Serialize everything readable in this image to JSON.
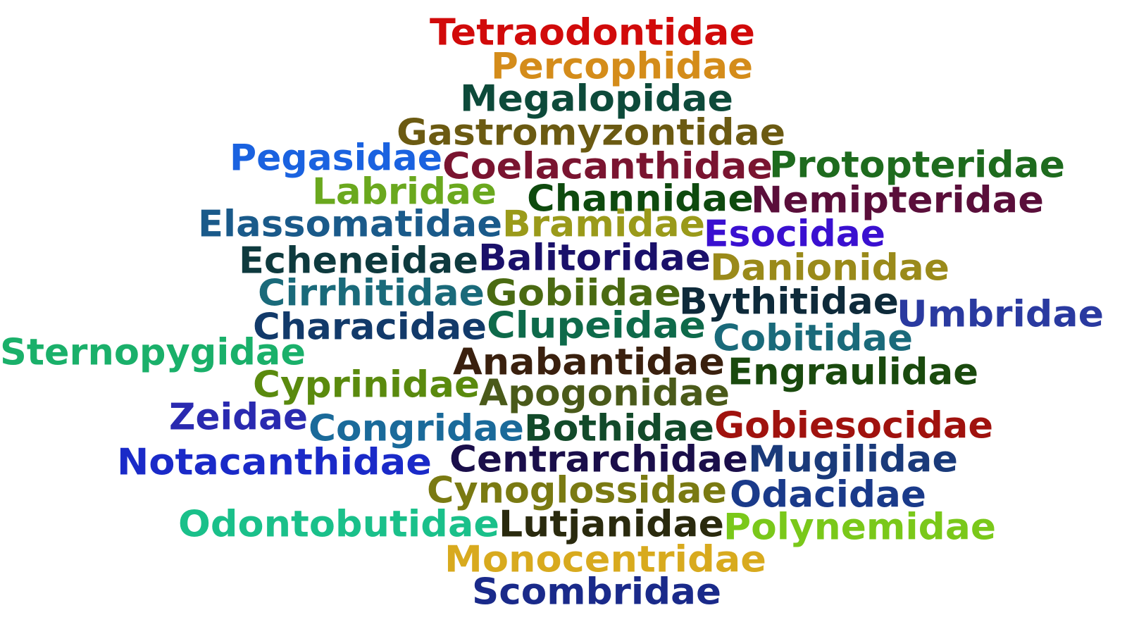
{
  "words": [
    {
      "text": "Tetraodontidae",
      "color": "#d10a0a"
    },
    {
      "text": "Percophidae",
      "color": "#d48c1a"
    },
    {
      "text": "Megalopidae",
      "color": "#0d4a3a"
    },
    {
      "text": "Gastromyzontidae",
      "color": "#6b5a12"
    },
    {
      "text": "Pegasidae",
      "color": "#1a62e0"
    },
    {
      "text": "Coelacanthidae",
      "color": "#7a1430"
    },
    {
      "text": "Protopteridae",
      "color": "#1e6b1e"
    },
    {
      "text": "Labridae",
      "color": "#6aa81e"
    },
    {
      "text": "Channidae",
      "color": "#0e4a0e"
    },
    {
      "text": "Nemipteridae",
      "color": "#5a0e3a"
    },
    {
      "text": "Elassomatidae",
      "color": "#1a5a8a"
    },
    {
      "text": "Bramidae",
      "color": "#9a9a1a"
    },
    {
      "text": "Esocidae",
      "color": "#3a10d0"
    },
    {
      "text": "Echeneidae",
      "color": "#0e3a3e"
    },
    {
      "text": "Balitoridae",
      "color": "#1a106a"
    },
    {
      "text": "Danionidae",
      "color": "#9a8a1a"
    },
    {
      "text": "Cirrhitidae",
      "color": "#1a6a7a"
    },
    {
      "text": "Gobiidae",
      "color": "#4a6a12"
    },
    {
      "text": "Bythitidae",
      "color": "#0e2a3a"
    },
    {
      "text": "Umbridae",
      "color": "#2a3aa0"
    },
    {
      "text": "Characidae",
      "color": "#123a6a"
    },
    {
      "text": "Clupeidae",
      "color": "#0e6a4a"
    },
    {
      "text": "Cobitidae",
      "color": "#1a6a7a"
    },
    {
      "text": "Sternopygidae",
      "color": "#1ab06a"
    },
    {
      "text": "Anabantidae",
      "color": "#3a200e"
    },
    {
      "text": "Engraulidae",
      "color": "#1a4a0e"
    },
    {
      "text": "Cyprinidae",
      "color": "#5a8a0e"
    },
    {
      "text": "Apogonidae",
      "color": "#4a5a1a"
    },
    {
      "text": "Zeidae",
      "color": "#2a2ab0"
    },
    {
      "text": "Congridae",
      "color": "#1a6a9a"
    },
    {
      "text": "Bothidae",
      "color": "#124a2a"
    },
    {
      "text": "Gobiesocidae",
      "color": "#a0120e"
    },
    {
      "text": "Notacanthidae",
      "color": "#1a2ac8"
    },
    {
      "text": "Centrarchidae",
      "color": "#1a0e4a"
    },
    {
      "text": "Mugilidae",
      "color": "#1a3a7a"
    },
    {
      "text": "Cynoglossidae",
      "color": "#7a7a12"
    },
    {
      "text": "Odacidae",
      "color": "#1a3a8a"
    },
    {
      "text": "Odontobutidae",
      "color": "#1ac08a"
    },
    {
      "text": "Lutjanidae",
      "color": "#2a2a0e"
    },
    {
      "text": "Polynemidae",
      "color": "#7ac81a"
    },
    {
      "text": "Monocentridae",
      "color": "#d8aa1e"
    },
    {
      "text": "Scombridae",
      "color": "#1a2a8a"
    }
  ]
}
